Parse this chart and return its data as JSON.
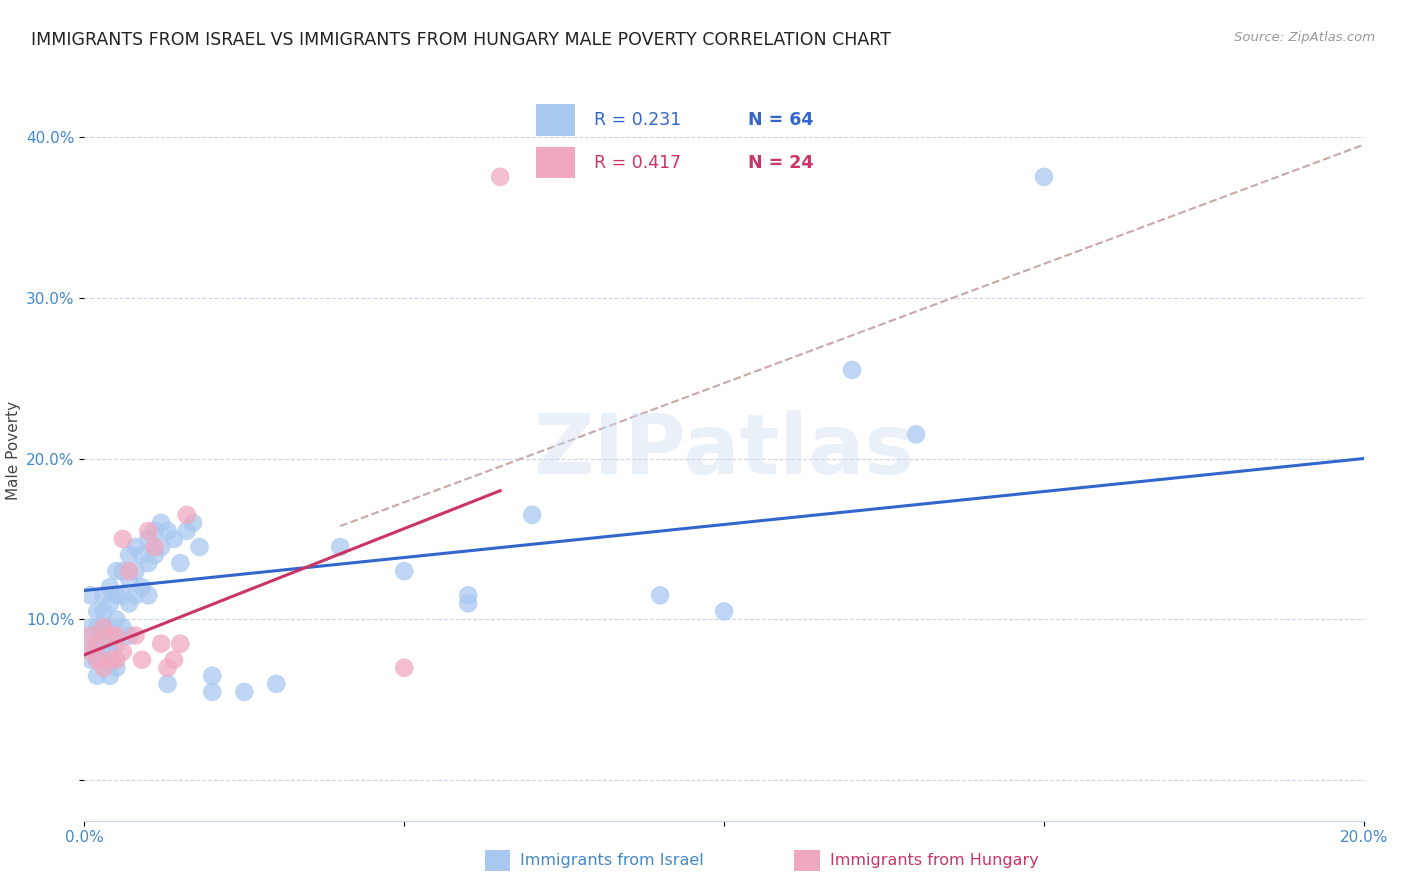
{
  "title": "IMMIGRANTS FROM ISRAEL VS IMMIGRANTS FROM HUNGARY MALE POVERTY CORRELATION CHART",
  "source": "Source: ZipAtlas.com",
  "ylabel": "Male Poverty",
  "xlim": [
    0.0,
    0.2
  ],
  "ylim": [
    -0.025,
    0.435
  ],
  "blue_color": "#A8C8F0",
  "pink_color": "#F0A8C0",
  "line_blue": "#3366CC",
  "line_pink": "#CC3366",
  "line_dashed_color": "#C8A8A8",
  "background_color": "#FFFFFF",
  "grid_color": "#C8D4E8",
  "title_fontsize": 12.5,
  "axis_label_fontsize": 11,
  "tick_fontsize": 11,
  "israel_x": [
    0.001,
    0.001,
    0.001,
    0.001,
    0.002,
    0.002,
    0.002,
    0.002,
    0.002,
    0.003,
    0.003,
    0.003,
    0.003,
    0.003,
    0.004,
    0.004,
    0.004,
    0.004,
    0.004,
    0.005,
    0.005,
    0.005,
    0.005,
    0.005,
    0.006,
    0.006,
    0.006,
    0.007,
    0.007,
    0.007,
    0.007,
    0.008,
    0.008,
    0.008,
    0.009,
    0.009,
    0.01,
    0.01,
    0.01,
    0.011,
    0.011,
    0.012,
    0.012,
    0.013,
    0.013,
    0.014,
    0.015,
    0.016,
    0.017,
    0.018,
    0.02,
    0.025,
    0.03,
    0.04,
    0.05,
    0.06,
    0.07,
    0.09,
    0.1,
    0.12,
    0.13,
    0.15,
    0.06,
    0.02
  ],
  "israel_y": [
    0.115,
    0.095,
    0.085,
    0.075,
    0.105,
    0.095,
    0.085,
    0.075,
    0.065,
    0.115,
    0.105,
    0.095,
    0.085,
    0.075,
    0.12,
    0.11,
    0.095,
    0.08,
    0.065,
    0.13,
    0.115,
    0.1,
    0.085,
    0.07,
    0.13,
    0.115,
    0.095,
    0.14,
    0.125,
    0.11,
    0.09,
    0.145,
    0.13,
    0.115,
    0.14,
    0.12,
    0.15,
    0.135,
    0.115,
    0.155,
    0.14,
    0.16,
    0.145,
    0.155,
    0.06,
    0.15,
    0.135,
    0.155,
    0.16,
    0.145,
    0.065,
    0.055,
    0.06,
    0.145,
    0.13,
    0.11,
    0.165,
    0.115,
    0.105,
    0.255,
    0.215,
    0.375,
    0.115,
    0.055
  ],
  "hungary_x": [
    0.001,
    0.001,
    0.002,
    0.002,
    0.003,
    0.003,
    0.004,
    0.004,
    0.005,
    0.005,
    0.006,
    0.006,
    0.007,
    0.008,
    0.009,
    0.01,
    0.011,
    0.012,
    0.013,
    0.014,
    0.015,
    0.016,
    0.05,
    0.065
  ],
  "hungary_y": [
    0.09,
    0.08,
    0.085,
    0.075,
    0.095,
    0.07,
    0.09,
    0.075,
    0.09,
    0.075,
    0.15,
    0.08,
    0.13,
    0.09,
    0.075,
    0.155,
    0.145,
    0.085,
    0.07,
    0.075,
    0.085,
    0.165,
    0.07,
    0.375
  ],
  "blue_line_x0": 0.0,
  "blue_line_y0": 0.118,
  "blue_line_x1": 0.2,
  "blue_line_y1": 0.2,
  "pink_line_x0": 0.0,
  "pink_line_y0": 0.078,
  "pink_line_x1": 0.065,
  "pink_line_y1": 0.18,
  "dashed_line_x0": 0.04,
  "dashed_line_y0": 0.158,
  "dashed_line_x1": 0.2,
  "dashed_line_y1": 0.395
}
